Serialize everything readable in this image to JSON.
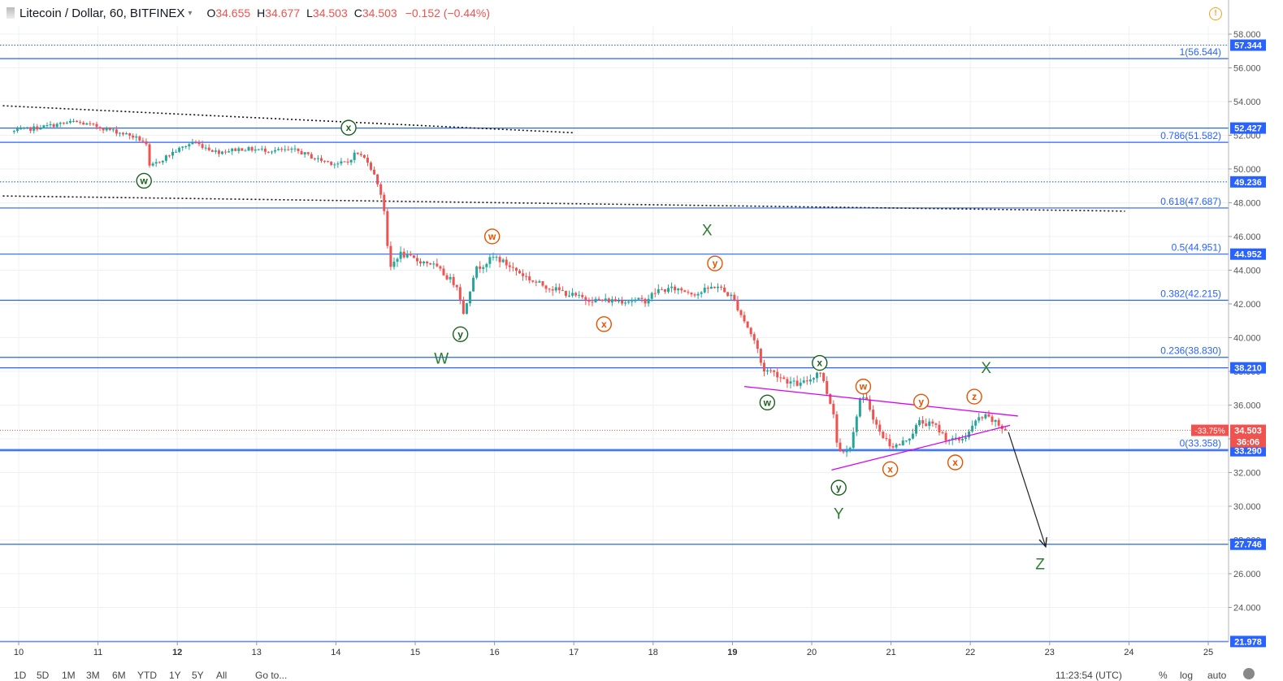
{
  "header": {
    "symbol": "Litecoin / Dollar, 60, BITFINEX",
    "o_label": "O",
    "o_value": "34.655",
    "h_label": "H",
    "h_value": "34.677",
    "l_label": "L",
    "l_value": "34.503",
    "c_label": "C",
    "c_value": "34.503",
    "change": "−0.152 (−0.44%)"
  },
  "chart_data": {
    "type": "candlestick",
    "ylim": [
      21.0,
      58.5
    ],
    "y_ticks": [
      "58.000",
      "56.000",
      "54.000",
      "52.000",
      "50.000",
      "48.000",
      "46.000",
      "44.000",
      "42.000",
      "40.000",
      "38.000",
      "36.000",
      "34.000",
      "32.000",
      "30.000",
      "28.000",
      "26.000",
      "24.000"
    ],
    "x_ticks": [
      {
        "label": "10",
        "t": 10
      },
      {
        "label": "11",
        "t": 11
      },
      {
        "label": "12",
        "t": 12,
        "bold": true
      },
      {
        "label": "13",
        "t": 13
      },
      {
        "label": "14",
        "t": 14
      },
      {
        "label": "15",
        "t": 15
      },
      {
        "label": "16",
        "t": 16
      },
      {
        "label": "17",
        "t": 17
      },
      {
        "label": "18",
        "t": 18
      },
      {
        "label": "19",
        "t": 19,
        "bold": true
      },
      {
        "label": "20",
        "t": 20
      },
      {
        "label": "21",
        "t": 21
      },
      {
        "label": "22",
        "t": 22
      },
      {
        "label": "23",
        "t": 23
      },
      {
        "label": "24",
        "t": 24
      },
      {
        "label": "25",
        "t": 25
      }
    ],
    "price_path": [
      [
        9.9,
        52.2
      ],
      [
        10.3,
        52.5
      ],
      [
        10.7,
        52.8
      ],
      [
        11.0,
        52.5
      ],
      [
        11.4,
        52.0
      ],
      [
        11.6,
        51.6
      ],
      [
        11.65,
        50.1
      ],
      [
        11.95,
        51.0
      ],
      [
        12.2,
        51.6
      ],
      [
        12.5,
        51.0
      ],
      [
        12.8,
        51.2
      ],
      [
        13.2,
        51.1
      ],
      [
        13.5,
        51.1
      ],
      [
        13.75,
        50.6
      ],
      [
        14.0,
        50.3
      ],
      [
        14.15,
        50.4
      ],
      [
        14.25,
        51.0
      ],
      [
        14.4,
        50.5
      ],
      [
        14.55,
        48.9
      ],
      [
        14.62,
        47.3
      ],
      [
        14.67,
        44.0
      ],
      [
        14.8,
        45.0
      ],
      [
        15.0,
        44.6
      ],
      [
        15.2,
        44.4
      ],
      [
        15.4,
        43.6
      ],
      [
        15.55,
        43.0
      ],
      [
        15.6,
        41.2
      ],
      [
        15.75,
        44.0
      ],
      [
        16.0,
        44.8
      ],
      [
        16.2,
        44.2
      ],
      [
        16.5,
        43.3
      ],
      [
        16.8,
        42.8
      ],
      [
        17.05,
        42.4
      ],
      [
        17.3,
        42.2
      ],
      [
        17.6,
        42.2
      ],
      [
        17.9,
        42.2
      ],
      [
        18.05,
        42.8
      ],
      [
        18.3,
        42.9
      ],
      [
        18.55,
        42.6
      ],
      [
        18.8,
        43.1
      ],
      [
        18.9,
        42.7
      ],
      [
        19.0,
        42.4
      ],
      [
        19.15,
        41.0
      ],
      [
        19.3,
        39.6
      ],
      [
        19.38,
        38.1
      ],
      [
        19.5,
        38.0
      ],
      [
        19.7,
        37.4
      ],
      [
        19.85,
        37.2
      ],
      [
        20.0,
        37.6
      ],
      [
        20.1,
        38.1
      ],
      [
        20.2,
        36.6
      ],
      [
        20.28,
        35.5
      ],
      [
        20.33,
        33.2
      ],
      [
        20.5,
        33.6
      ],
      [
        20.6,
        36.4
      ],
      [
        20.7,
        36.2
      ],
      [
        20.85,
        34.4
      ],
      [
        21.0,
        33.6
      ],
      [
        21.1,
        33.6
      ],
      [
        21.25,
        34.2
      ],
      [
        21.35,
        35.0
      ],
      [
        21.55,
        34.8
      ],
      [
        21.7,
        34.0
      ],
      [
        21.85,
        33.9
      ],
      [
        21.95,
        34.2
      ],
      [
        22.1,
        35.2
      ],
      [
        22.2,
        35.3
      ],
      [
        22.3,
        35.0
      ],
      [
        22.4,
        34.65
      ],
      [
        22.45,
        34.5
      ]
    ],
    "horizontal_lines": [
      {
        "price": 57.344,
        "style": "dotted",
        "label": "57.344"
      },
      {
        "price": 56.544,
        "style": "solid"
      },
      {
        "price": 52.427,
        "style": "solid",
        "label": "52.427"
      },
      {
        "price": 51.582,
        "style": "solid"
      },
      {
        "price": 49.236,
        "style": "dotted",
        "label": "49.236"
      },
      {
        "price": 47.687,
        "style": "solid"
      },
      {
        "price": 44.952,
        "style": "solid",
        "label": "44.952"
      },
      {
        "price": 42.215,
        "style": "solid"
      },
      {
        "price": 38.83,
        "style": "solid"
      },
      {
        "price": 38.21,
        "style": "solid",
        "label": "38.210"
      },
      {
        "price": 33.358,
        "style": "solid"
      },
      {
        "price": 33.29,
        "style": "solid",
        "label": "33.290"
      },
      {
        "price": 27.746,
        "style": "solid",
        "label": "27.746"
      },
      {
        "price": 21.978,
        "style": "solid",
        "label": "21.978"
      }
    ],
    "fib_labels": [
      {
        "text": "1(56.544)",
        "price": 56.544
      },
      {
        "text": "0.786(51.582)",
        "price": 51.582
      },
      {
        "text": "0.618(47.687)",
        "price": 47.687
      },
      {
        "text": "0.5(44.951)",
        "price": 44.951
      },
      {
        "text": "0.382(42.215)",
        "price": 42.215
      },
      {
        "text": "0.236(38.830)",
        "price": 38.83
      },
      {
        "text": "0(33.358)",
        "price": 33.358
      }
    ],
    "dotted_trendlines": [
      {
        "t1": 9.8,
        "p1": 53.75,
        "t2": 17.0,
        "p2": 52.15
      },
      {
        "t1": 9.8,
        "p1": 48.4,
        "t2": 23.95,
        "p2": 47.5
      }
    ],
    "triangle_lines": [
      {
        "t1": 19.15,
        "p1": 37.1,
        "t2": 22.6,
        "p2": 35.35
      },
      {
        "t1": 20.25,
        "p1": 32.15,
        "t2": 22.5,
        "p2": 34.8
      }
    ],
    "projection_arrow": {
      "t1": 22.48,
      "p1": 34.4,
      "t2": 22.95,
      "p2": 27.6
    },
    "current_price": {
      "price": 34.503,
      "pct": "-33.75%",
      "value": "34.503",
      "countdown": "36:06"
    },
    "waves": [
      {
        "text": "w",
        "style": "green",
        "t": 11.58,
        "price": 49.3
      },
      {
        "text": "x",
        "style": "green",
        "t": 14.16,
        "price": 52.45
      },
      {
        "text": "y",
        "style": "green",
        "t": 15.57,
        "price": 40.2
      },
      {
        "text": "W",
        "style": "big",
        "t": 15.33,
        "price": 38.8
      },
      {
        "text": "w",
        "style": "orange",
        "t": 15.97,
        "price": 46.0
      },
      {
        "text": "x",
        "style": "orange",
        "t": 17.38,
        "price": 40.8
      },
      {
        "text": "y",
        "style": "orange",
        "t": 18.78,
        "price": 44.4
      },
      {
        "text": "X",
        "style": "big",
        "t": 18.68,
        "price": 46.4
      },
      {
        "text": "w",
        "style": "green",
        "t": 19.44,
        "price": 36.15
      },
      {
        "text": "x",
        "style": "green",
        "t": 20.1,
        "price": 38.5
      },
      {
        "text": "y",
        "style": "green",
        "t": 20.34,
        "price": 31.1
      },
      {
        "text": "Y",
        "style": "big",
        "t": 20.34,
        "price": 29.6
      },
      {
        "text": "w",
        "style": "orange",
        "t": 20.65,
        "price": 37.1
      },
      {
        "text": "x",
        "style": "orange",
        "t": 20.99,
        "price": 32.2
      },
      {
        "text": "y",
        "style": "orange",
        "t": 21.38,
        "price": 36.2
      },
      {
        "text": "x",
        "style": "orange",
        "t": 21.81,
        "price": 32.6
      },
      {
        "text": "z",
        "style": "orange",
        "t": 22.05,
        "price": 36.5
      },
      {
        "text": "X",
        "style": "big",
        "t": 22.2,
        "price": 38.25
      },
      {
        "text": "Z",
        "style": "big",
        "t": 22.88,
        "price": 26.6
      }
    ],
    "colors": {
      "up": "#26a69a",
      "down": "#ef5350",
      "level": "#2962ff",
      "fib_text": "#2962ff",
      "triangle": "#d500f9",
      "wave_green": "#1b5e20",
      "wave_orange": "#e65100",
      "axis_label_bg": "#2962ff",
      "current_bg": "#ef5350"
    }
  },
  "bottombar": {
    "ranges": [
      "1D",
      "5D",
      "1M",
      "3M",
      "6M",
      "YTD",
      "1Y",
      "5Y",
      "All"
    ],
    "goto": "Go to...",
    "time": "11:23:54 (UTC)",
    "pct": "%",
    "log": "log",
    "auto": "auto"
  }
}
